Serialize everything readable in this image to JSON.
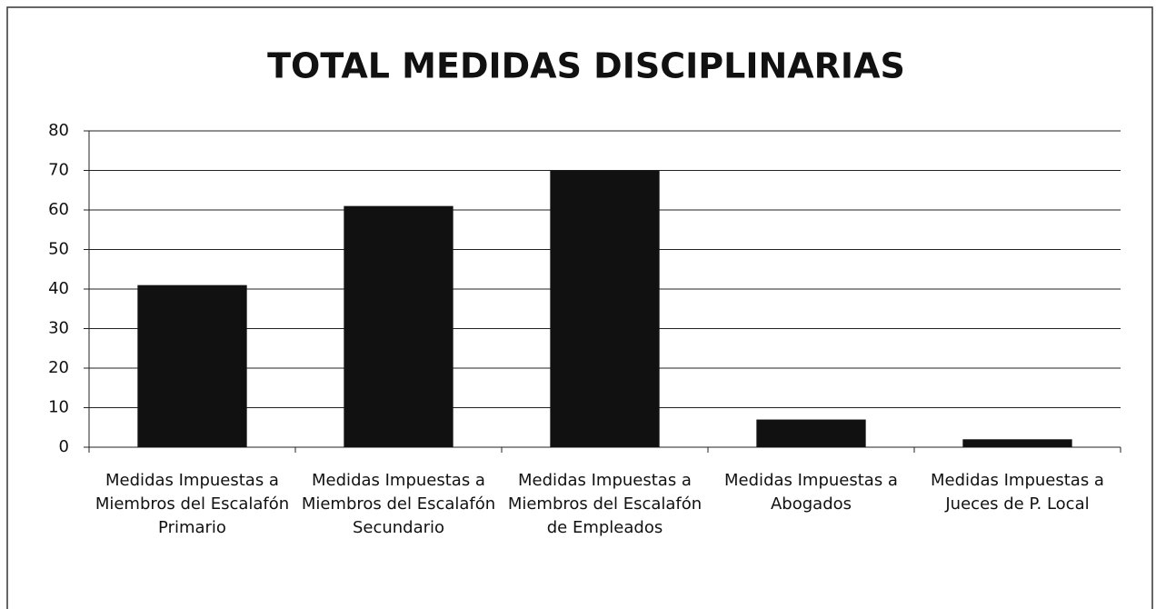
{
  "chart_data": {
    "type": "bar",
    "title": "TOTAL MEDIDAS DISCIPLINARIAS",
    "categories": [
      "Medidas Impuestas a Miembros del Escalafón Primario",
      "Medidas Impuestas a Miembros del Escalafón Secundario",
      "Medidas Impuestas a Miembros del Escalafón de Empleados",
      "Medidas Impuestas a Abogados",
      "Medidas Impuestas a Jueces de P. Local"
    ],
    "values": [
      41,
      61,
      70,
      7,
      2
    ],
    "color": "#111111",
    "ylim": [
      0,
      80
    ],
    "yticks": [
      0,
      10,
      20,
      30,
      40,
      50,
      60,
      70,
      80
    ],
    "grid": true
  }
}
